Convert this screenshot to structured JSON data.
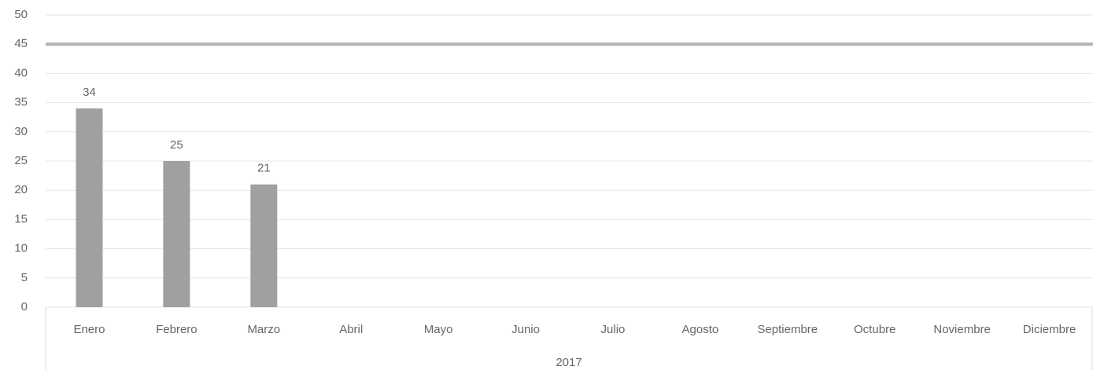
{
  "chart_data": {
    "type": "bar",
    "categories": [
      "Enero",
      "Febrero",
      "Marzo",
      "Abril",
      "Mayo",
      "Junio",
      "Julio",
      "Agosto",
      "Septiembre",
      "Octubre",
      "Noviembre",
      "Diciembre"
    ],
    "group_label": "2017",
    "values": [
      34,
      25,
      21,
      null,
      null,
      null,
      null,
      null,
      null,
      null,
      null,
      null
    ],
    "color": "#a0a0a0",
    "target": 45,
    "target_color": "#b4b4b4",
    "ylim": [
      0,
      50
    ],
    "yticks": [
      0,
      5,
      10,
      15,
      20,
      25,
      30,
      35,
      40,
      45,
      50
    ],
    "grid": true
  }
}
